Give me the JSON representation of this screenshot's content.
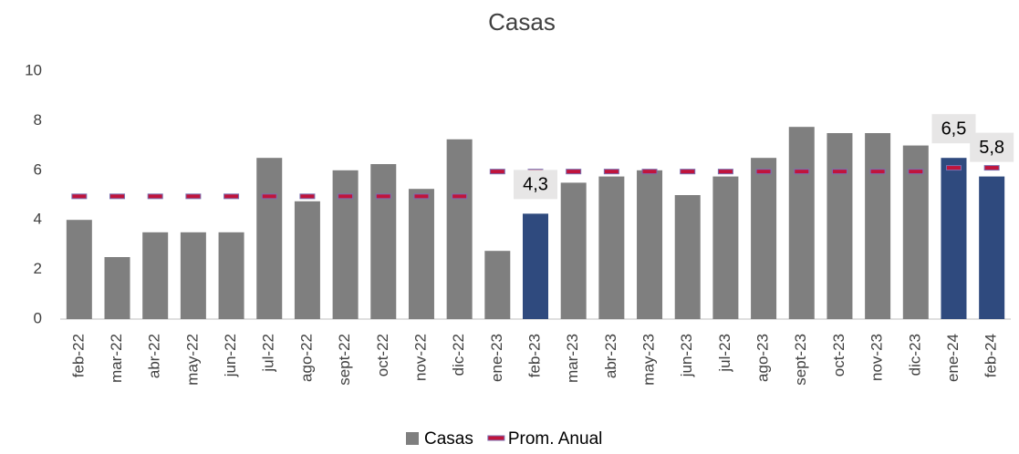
{
  "chart_data": {
    "type": "bar",
    "title": "Casas",
    "categories": [
      "feb-22",
      "mar-22",
      "abr-22",
      "may-22",
      "jun-22",
      "jul-22",
      "ago-22",
      "sept-22",
      "oct-22",
      "nov-22",
      "dic-22",
      "ene-23",
      "feb-23",
      "mar-23",
      "abr-23",
      "may-23",
      "jun-23",
      "jul-23",
      "ago-23",
      "sept-23",
      "oct-23",
      "nov-23",
      "dic-23",
      "ene-24",
      "feb-24"
    ],
    "series": [
      {
        "name": "Casas",
        "type": "bar",
        "color": "#7f7f7f",
        "highlight_color": "#2f4a7e",
        "highlight": [
          false,
          false,
          false,
          false,
          false,
          false,
          false,
          false,
          false,
          false,
          false,
          false,
          true,
          false,
          false,
          false,
          false,
          false,
          false,
          false,
          false,
          false,
          false,
          true,
          true
        ],
        "values": [
          4.0,
          2.5,
          3.5,
          3.5,
          3.5,
          6.5,
          4.75,
          6.0,
          6.25,
          5.25,
          7.25,
          2.75,
          4.25,
          5.5,
          5.75,
          6.0,
          5.0,
          5.75,
          6.5,
          7.75,
          7.5,
          7.5,
          7.0,
          6.5,
          5.75
        ],
        "value_labels": [
          null,
          null,
          null,
          null,
          null,
          null,
          null,
          null,
          null,
          null,
          null,
          null,
          "4,3",
          null,
          null,
          null,
          null,
          null,
          null,
          null,
          null,
          null,
          null,
          "6,5",
          "5,8"
        ]
      },
      {
        "name": "Prom. Anual",
        "type": "dash",
        "color": "#c0143c",
        "values": [
          4.95,
          4.95,
          4.95,
          4.95,
          4.95,
          4.95,
          4.95,
          4.95,
          4.95,
          4.95,
          4.95,
          5.95,
          5.95,
          5.95,
          5.95,
          5.95,
          5.95,
          5.95,
          5.95,
          5.95,
          5.95,
          5.95,
          5.95,
          6.1,
          6.1
        ]
      }
    ],
    "ylim": [
      0,
      10
    ],
    "yticks": [
      0,
      2,
      4,
      6,
      8,
      10
    ],
    "grid": false,
    "legend": "bottom"
  }
}
